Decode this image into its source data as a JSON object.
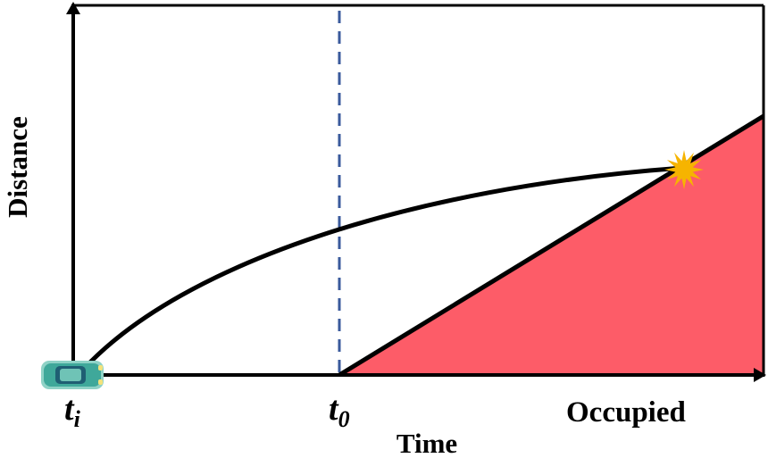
{
  "axes": {
    "x_label": "Time",
    "y_label": "Distance"
  },
  "markers": {
    "ti": {
      "base": "t",
      "sub": "i"
    },
    "t0": {
      "base": "t",
      "sub": "0"
    }
  },
  "region": {
    "label": "Occupied",
    "fill_color": "#fd5c68"
  },
  "colors": {
    "axis": "#000000",
    "trajectory": "#000000",
    "dashed_line": "#3a5a9c",
    "collision": "#f6b400",
    "vehicle": "#3fa89a"
  },
  "icons": {
    "vehicle": "car-icon",
    "collision": "collision-burst-icon"
  }
}
